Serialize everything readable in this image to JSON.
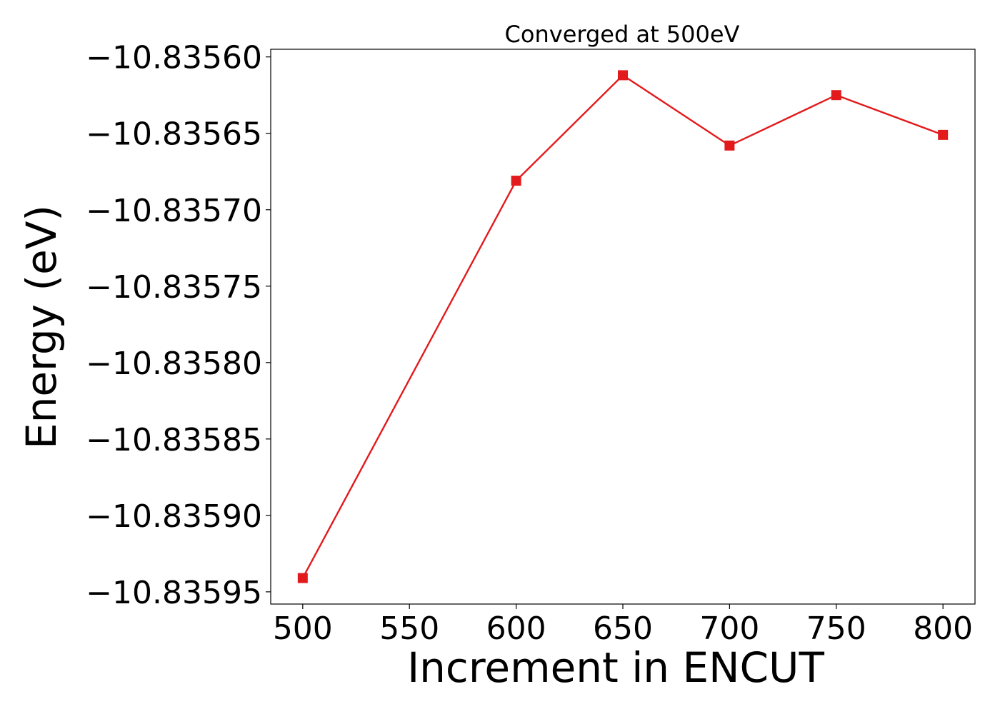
{
  "chart_data": {
    "type": "line",
    "title": "Converged at 500eV",
    "xlabel": "Increment in ENCUT",
    "ylabel": "Energy (eV)",
    "x": [
      500,
      600,
      650,
      700,
      750,
      800
    ],
    "series": [
      {
        "values": [
          -10.835941,
          -10.835681,
          -10.835612,
          -10.835658,
          -10.835625,
          -10.835651
        ],
        "color": "#e31a1c",
        "marker": "square"
      }
    ],
    "xticks": [
      500,
      550,
      600,
      650,
      700,
      750,
      800
    ],
    "xtick_labels": [
      "500",
      "550",
      "600",
      "650",
      "700",
      "750",
      "800"
    ],
    "yticks": [
      -10.8356,
      -10.83565,
      -10.8357,
      -10.83575,
      -10.8358,
      -10.83585,
      -10.8359,
      -10.83595
    ],
    "ytick_labels": [
      "−10.83560",
      "−10.83565",
      "−10.83570",
      "−10.83575",
      "−10.83580",
      "−10.83585",
      "−10.83590",
      "−10.83595"
    ],
    "xlim": [
      485,
      815
    ],
    "ylim": [
      -10.835958,
      -10.835595
    ],
    "grid": false,
    "legend": false
  }
}
